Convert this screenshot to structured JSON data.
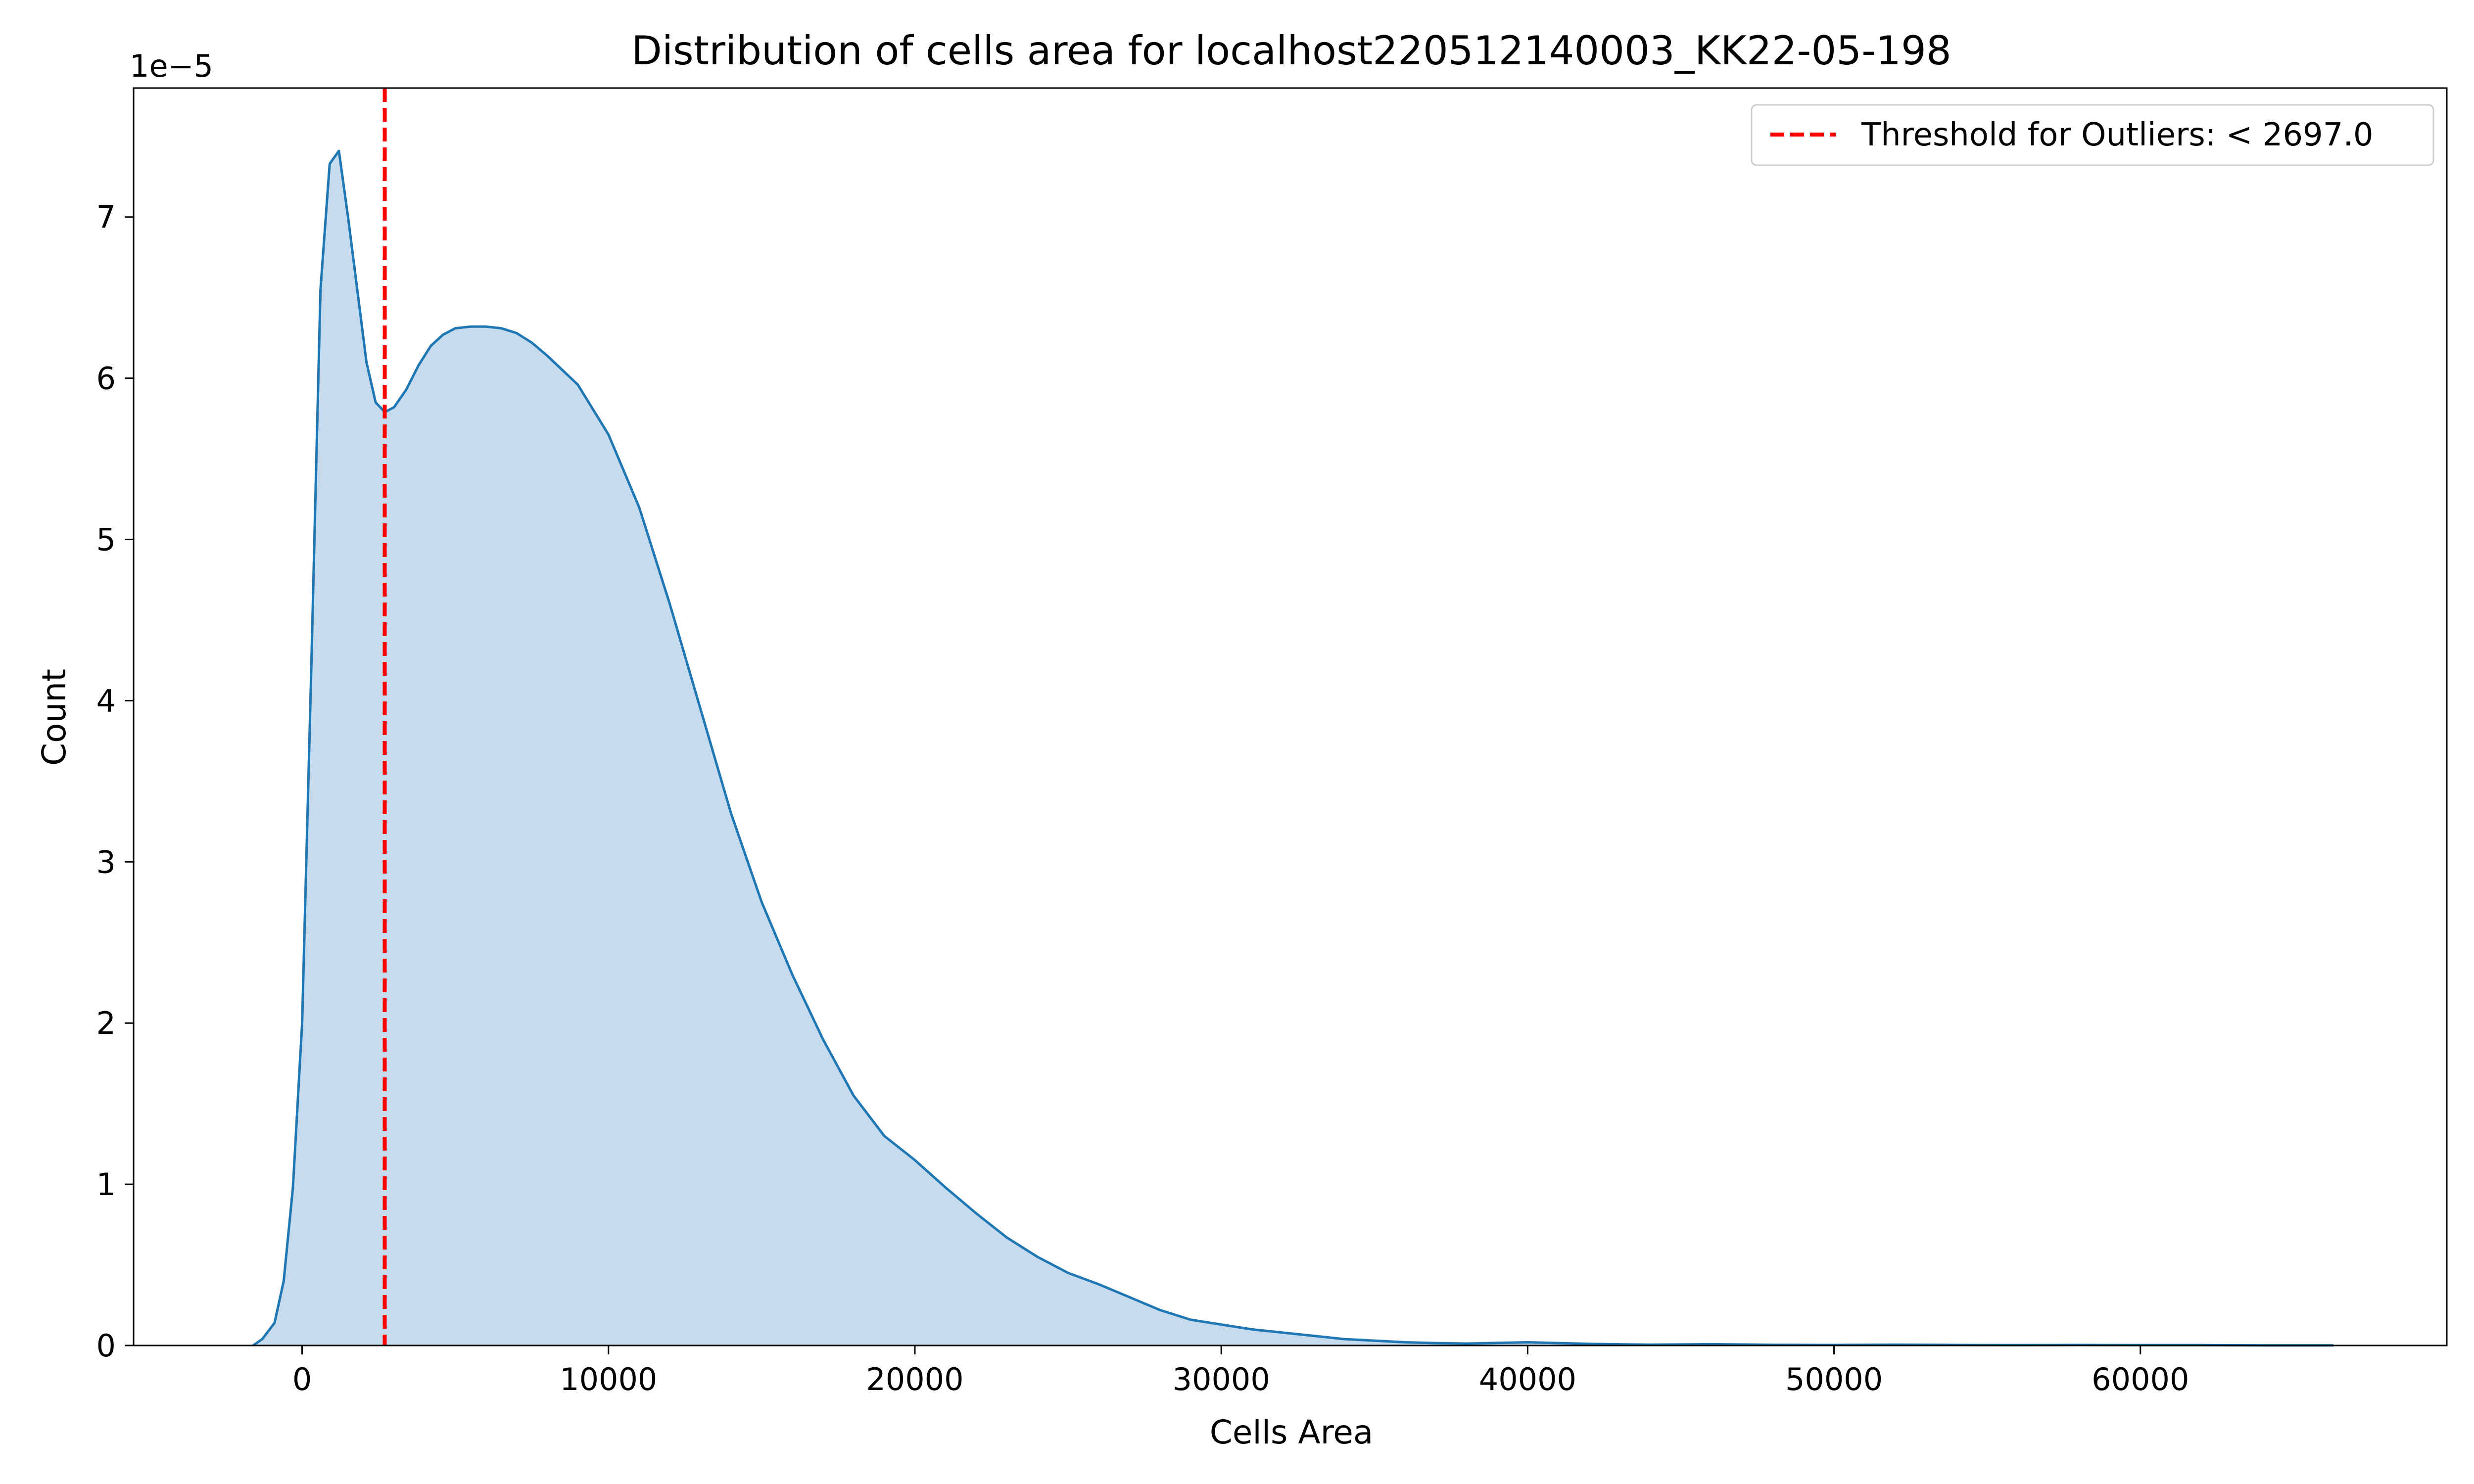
{
  "chart_data": {
    "type": "area",
    "title": "Distribution of cells area for localhost220512140003_KK22-05-198",
    "xlabel": "Cells Area",
    "ylabel": "Count",
    "y_offset_label": "1e−5",
    "y_scale": 1e-05,
    "xlim": [
      -5500,
      70000
    ],
    "ylim": [
      0,
      7.8
    ],
    "x_ticks": [
      0,
      10000,
      20000,
      30000,
      40000,
      50000,
      60000
    ],
    "y_ticks": [
      0,
      1,
      2,
      3,
      4,
      5,
      6,
      7
    ],
    "grid": false,
    "legend_position": "top-right",
    "series": [
      {
        "color": "#1f77b4",
        "fill_color": "#c6dbed",
        "x": [
          -1600,
          -1300,
          -900,
          -600,
          -300,
          0,
          300,
          600,
          900,
          1200,
          1500,
          1800,
          2100,
          2400,
          2700,
          3000,
          3400,
          3800,
          4200,
          4600,
          5000,
          5500,
          6000,
          6500,
          7000,
          7500,
          8000,
          9000,
          10000,
          11000,
          12000,
          13000,
          14000,
          15000,
          16000,
          17000,
          18000,
          19000,
          20000,
          21000,
          22000,
          23000,
          24000,
          25000,
          26000,
          27000,
          28000,
          29000,
          30000,
          31000,
          32000,
          33000,
          34000,
          35000,
          36000,
          37000,
          38000,
          40000,
          42000,
          44000,
          46000,
          48000,
          50000,
          52000,
          54000,
          56000,
          58000,
          60000,
          62000,
          64000,
          66300
        ],
        "y": [
          0.0,
          0.04,
          0.14,
          0.4,
          0.98,
          2.0,
          4.2,
          6.55,
          7.33,
          7.41,
          7.0,
          6.55,
          6.1,
          5.85,
          5.79,
          5.82,
          5.93,
          6.08,
          6.2,
          6.27,
          6.31,
          6.32,
          6.32,
          6.31,
          6.28,
          6.22,
          6.14,
          5.96,
          5.65,
          5.2,
          4.6,
          3.95,
          3.3,
          2.75,
          2.3,
          1.9,
          1.55,
          1.3,
          1.15,
          0.98,
          0.82,
          0.67,
          0.55,
          0.45,
          0.38,
          0.3,
          0.22,
          0.16,
          0.13,
          0.1,
          0.08,
          0.06,
          0.04,
          0.03,
          0.02,
          0.015,
          0.012,
          0.02,
          0.01,
          0.005,
          0.008,
          0.004,
          0.003,
          0.005,
          0.003,
          0.002,
          0.003,
          0.002,
          0.002,
          0.001,
          0.001
        ]
      }
    ],
    "threshold": {
      "x": 2697.0,
      "color": "#ff0000",
      "label": "Threshold for Outliers: < 2697.0"
    }
  }
}
